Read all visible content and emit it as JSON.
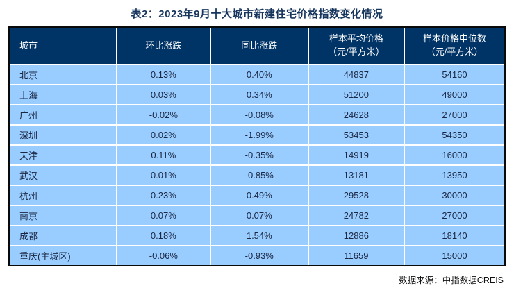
{
  "title": "表2：2023年9月十大城市新建住宅价格指数变化情况",
  "source_note": "数据来源：中指数据CREIS",
  "colors": {
    "title_color": "#17365D",
    "header_bg": "#003366",
    "header_text": "#FFFFFF",
    "row_bg": "#99CCFF",
    "row_text": "#1A2742",
    "grid_line": "#FFFFFF",
    "outer_border": "#0A0A0A"
  },
  "table": {
    "columns": [
      {
        "label": "城市",
        "sublabel": ""
      },
      {
        "label": "环比涨跌",
        "sublabel": ""
      },
      {
        "label": "同比涨跌",
        "sublabel": ""
      },
      {
        "label": "样本平均价格",
        "sublabel": "（元/平方米）"
      },
      {
        "label": "样本价格中位数",
        "sublabel": "（元/平方米）"
      }
    ],
    "rows": [
      {
        "city": "北京",
        "mom": "0.13%",
        "yoy": "0.40%",
        "avg_price": "44837",
        "median_price": "54160"
      },
      {
        "city": "上海",
        "mom": "0.03%",
        "yoy": "0.34%",
        "avg_price": "51200",
        "median_price": "49000"
      },
      {
        "city": "广州",
        "mom": "-0.02%",
        "yoy": "-0.08%",
        "avg_price": "24628",
        "median_price": "27000"
      },
      {
        "city": "深圳",
        "mom": "0.02%",
        "yoy": "-1.99%",
        "avg_price": "53453",
        "median_price": "54350"
      },
      {
        "city": "天津",
        "mom": "0.11%",
        "yoy": "-0.35%",
        "avg_price": "14919",
        "median_price": "16000"
      },
      {
        "city": "武汉",
        "mom": "0.01%",
        "yoy": "-0.85%",
        "avg_price": "13181",
        "median_price": "13950"
      },
      {
        "city": "杭州",
        "mom": "0.23%",
        "yoy": "0.49%",
        "avg_price": "29528",
        "median_price": "30000"
      },
      {
        "city": "南京",
        "mom": "0.07%",
        "yoy": "0.07%",
        "avg_price": "24782",
        "median_price": "27000"
      },
      {
        "city": "成都",
        "mom": "0.18%",
        "yoy": "1.54%",
        "avg_price": "12886",
        "median_price": "18140"
      },
      {
        "city": "重庆(主城区)",
        "mom": "-0.06%",
        "yoy": "-0.93%",
        "avg_price": "11659",
        "median_price": "15000"
      }
    ]
  }
}
